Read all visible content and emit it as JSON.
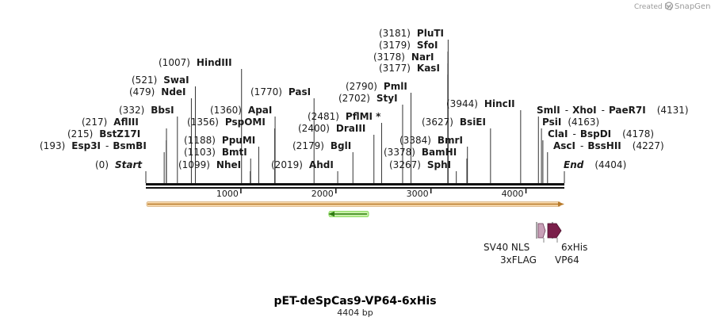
{
  "credit": {
    "prefix": "Created by",
    "brand": "SnapGene"
  },
  "plasmid": {
    "name": "pET-deSpCas9-VP64-6xHis",
    "length_label": "4404 bp",
    "length": 4404
  },
  "ruler": {
    "ticks": [
      {
        "pos": 1000,
        "label": "1000"
      },
      {
        "pos": 2000,
        "label": "2000"
      },
      {
        "pos": 3000,
        "label": "3000"
      },
      {
        "pos": 4000,
        "label": "4000"
      }
    ]
  },
  "sites_left": [
    {
      "pos": "(0)",
      "name": "Start",
      "italic": true,
      "bp": 0
    },
    {
      "pos": "(193)",
      "name": "Esp3I",
      "sep": "-",
      "name2": "BsmBI",
      "bp": 193
    },
    {
      "pos": "(215)",
      "name": "BstZ17I",
      "bp": 215
    },
    {
      "pos": "(217)",
      "name": "AflIII",
      "bp": 217
    },
    {
      "pos": "(332)",
      "name": "BbsI",
      "bp": 332
    },
    {
      "pos": "(479)",
      "name": "NdeI",
      "bp": 479
    },
    {
      "pos": "(521)",
      "name": "SwaI",
      "bp": 521
    },
    {
      "pos": "(1007)",
      "name": "HindIII",
      "bp": 1007
    },
    {
      "pos": "(1099)",
      "name": "NheI",
      "bp": 1099
    },
    {
      "pos": "(1103)",
      "name": "BmtI",
      "bp": 1103
    },
    {
      "pos": "(1188)",
      "name": "PpuMI",
      "bp": 1188
    },
    {
      "pos": "(1356)",
      "name": "PspOMI",
      "bp": 1356
    },
    {
      "pos": "(1360)",
      "name": "ApaI",
      "bp": 1360
    },
    {
      "pos": "(1770)",
      "name": "PasI",
      "bp": 1770
    },
    {
      "pos": "(2019)",
      "name": "AhdI",
      "bp": 2019
    },
    {
      "pos": "(2179)",
      "name": "BglI",
      "bp": 2179
    },
    {
      "pos": "(2400)",
      "name": "DraIII",
      "bp": 2400
    },
    {
      "pos": "(2481)",
      "name": "PflMI *",
      "bp": 2481
    },
    {
      "pos": "(2702)",
      "name": "StyI",
      "bp": 2702
    },
    {
      "pos": "(2790)",
      "name": "PmlI",
      "bp": 2790
    },
    {
      "pos": "(3177)",
      "name": "KasI",
      "bp": 3177
    },
    {
      "pos": "(3178)",
      "name": "NarI",
      "bp": 3178
    },
    {
      "pos": "(3179)",
      "name": "SfoI",
      "bp": 3179
    },
    {
      "pos": "(3181)",
      "name": "PluTI",
      "bp": 3181
    },
    {
      "pos": "(3267)",
      "name": "SphI",
      "bp": 3267
    },
    {
      "pos": "(3378)",
      "name": "BamHI",
      "bp": 3378
    },
    {
      "pos": "(3384)",
      "name": "BmrI",
      "bp": 3384
    },
    {
      "pos": "(3627)",
      "name": "BsiEI",
      "bp": 3627
    },
    {
      "pos": "(3944)",
      "name": "HincII",
      "bp": 3944
    }
  ],
  "sites_right": [
    {
      "name": "SmlI",
      "sep": "-",
      "name2": "XhoI",
      "sep2": "-",
      "name3": "PaeR7I",
      "pos": "(4131)",
      "bp": 4131
    },
    {
      "name": "PsiI",
      "pos": "(4163)",
      "bp": 4163
    },
    {
      "name": "ClaI",
      "sep": "-",
      "name2": "BspDI",
      "pos": "(4178)",
      "bp": 4178
    },
    {
      "name": "AscI",
      "sep": "-",
      "name2": "BssHII",
      "pos": "(4227)",
      "bp": 4227
    },
    {
      "name": "End",
      "italic": true,
      "pos": "(4404)",
      "bp": 4404
    }
  ],
  "features": [
    {
      "name": "SV40 NLS",
      "color": "#c9a0b8"
    },
    {
      "name": "3xFLAG",
      "color": "#d8b8c8"
    },
    {
      "name": "6xHis",
      "color": "#7a1f4a"
    },
    {
      "name": "VP64",
      "color": "#9b2a5f"
    }
  ],
  "colors": {
    "backbone_fill": "#f5c27a",
    "backbone_edge": "#b87a2a",
    "arrow_green": "#6fd43a"
  }
}
